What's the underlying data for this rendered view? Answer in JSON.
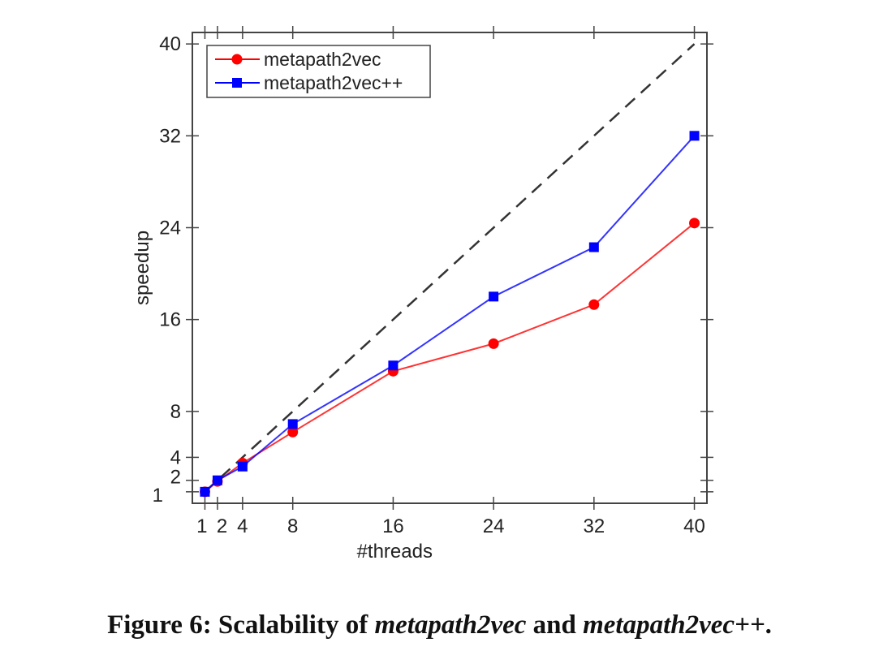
{
  "chart_data": {
    "type": "line",
    "xlabel": "#threads",
    "ylabel": "speedup",
    "xlim": [
      0,
      41
    ],
    "ylim": [
      0,
      41
    ],
    "xticks": [
      1,
      2,
      4,
      8,
      16,
      24,
      32,
      40
    ],
    "yticks": [
      1,
      2,
      4,
      8,
      16,
      24,
      32,
      40
    ],
    "grid": false,
    "legend_position": "top-left",
    "x": [
      1,
      2,
      4,
      8,
      16,
      24,
      32,
      40
    ],
    "series": [
      {
        "name": "metapath2vec",
        "color": "#ff0000",
        "marker": "circle",
        "values": [
          1,
          1.9,
          3.5,
          6.2,
          11.5,
          13.9,
          17.3,
          24.4
        ]
      },
      {
        "name": "metapath2vec++",
        "color": "#0000ff",
        "marker": "square",
        "values": [
          1,
          2.0,
          3.2,
          6.9,
          12.0,
          18.0,
          22.3,
          32.0
        ]
      }
    ],
    "reference_line": {
      "style": "dashed",
      "color": "#333333",
      "x": [
        1,
        40
      ],
      "y": [
        1,
        40
      ]
    }
  },
  "caption": {
    "prefix": "Figure 6: Scalability of ",
    "name1": "metapath2vec",
    "mid": " and ",
    "name2": "metapath2vec++",
    "suffix": "."
  }
}
